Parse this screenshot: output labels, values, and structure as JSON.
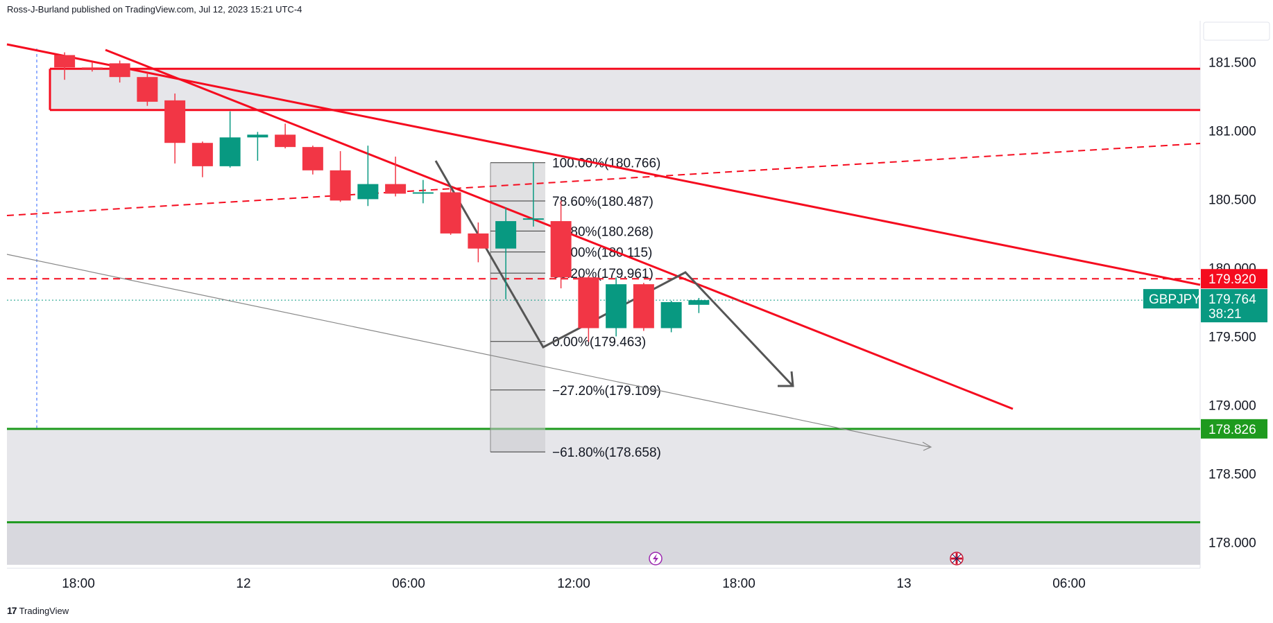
{
  "header": {
    "publisher": "Ross-J-Burland published on TradingView.com, Jul 12, 2023 15:21 UTC-4"
  },
  "footer": {
    "brand": "TradingView"
  },
  "colors": {
    "bull": "#089981",
    "bear": "#f23645",
    "resistance": "#f50c1f",
    "support": "#1e9a1e",
    "grey": "#555555",
    "zone": "#e6e6ea"
  },
  "chart_data": {
    "type": "candlestick",
    "symbol": "GBPJPY",
    "x_ticks": [
      "18:00",
      "12",
      "06:00",
      "12:00",
      "18:00",
      "13",
      "06:00"
    ],
    "y_ticks": [
      "181.500",
      "181.000",
      "180.500",
      "180.000",
      "179.500",
      "179.000",
      "178.500",
      "178.000"
    ],
    "ylim": [
      177.81,
      181.8
    ],
    "candles": [
      {
        "t": -0.5,
        "o": 181.55,
        "h": 181.57,
        "l": 181.37,
        "c": 181.46
      },
      {
        "t": 0.5,
        "o": 181.46,
        "h": 181.5,
        "l": 181.43,
        "c": 181.45
      },
      {
        "t": 1.5,
        "o": 181.49,
        "h": 181.51,
        "l": 181.35,
        "c": 181.39
      },
      {
        "t": 2.5,
        "o": 181.39,
        "h": 181.42,
        "l": 181.18,
        "c": 181.21
      },
      {
        "t": 3.5,
        "o": 181.22,
        "h": 181.27,
        "l": 180.76,
        "c": 180.91
      },
      {
        "t": 4.5,
        "o": 180.91,
        "h": 180.92,
        "l": 180.66,
        "c": 180.74
      },
      {
        "t": 5.5,
        "o": 180.74,
        "h": 181.14,
        "l": 180.73,
        "c": 180.95
      },
      {
        "t": 6.5,
        "o": 180.95,
        "h": 180.99,
        "l": 180.78,
        "c": 180.97
      },
      {
        "t": 7.5,
        "o": 180.97,
        "h": 181.05,
        "l": 180.87,
        "c": 180.88
      },
      {
        "t": 8.5,
        "o": 180.88,
        "h": 180.89,
        "l": 180.68,
        "c": 180.71
      },
      {
        "t": 9.5,
        "o": 180.71,
        "h": 180.85,
        "l": 180.48,
        "c": 180.49
      },
      {
        "t": 10.5,
        "o": 180.5,
        "h": 180.89,
        "l": 180.45,
        "c": 180.61
      },
      {
        "t": 11.5,
        "o": 180.61,
        "h": 180.81,
        "l": 180.52,
        "c": 180.54
      },
      {
        "t": 12.5,
        "o": 180.54,
        "h": 180.64,
        "l": 180.47,
        "c": 180.55
      },
      {
        "t": 13.5,
        "o": 180.55,
        "h": 180.58,
        "l": 180.24,
        "c": 180.25
      },
      {
        "t": 14.5,
        "o": 180.25,
        "h": 180.33,
        "l": 180.04,
        "c": 180.14
      },
      {
        "t": 15.5,
        "o": 180.14,
        "h": 180.44,
        "l": 179.77,
        "c": 180.34
      },
      {
        "t": 16.5,
        "o": 180.35,
        "h": 180.77,
        "l": 180.3,
        "c": 180.36
      },
      {
        "t": 17.5,
        "o": 180.34,
        "h": 180.49,
        "l": 179.85,
        "c": 179.93
      },
      {
        "t": 18.5,
        "o": 179.93,
        "h": 179.94,
        "l": 179.46,
        "c": 179.56
      },
      {
        "t": 19.5,
        "o": 179.56,
        "h": 179.93,
        "l": 179.5,
        "c": 179.88
      },
      {
        "t": 20.5,
        "o": 179.88,
        "h": 179.89,
        "l": 179.54,
        "c": 179.56
      },
      {
        "t": 21.5,
        "o": 179.56,
        "h": 179.76,
        "l": 179.53,
        "c": 179.75
      },
      {
        "t": 22.5,
        "o": 179.73,
        "h": 179.78,
        "l": 179.67,
        "c": 179.764
      }
    ],
    "fibonacci": {
      "levels": [
        {
          "label": "100.00%(180.766)",
          "price": 180.766
        },
        {
          "label": "78.60%(180.487)",
          "price": 180.487
        },
        {
          "label": "61.80%(180.268)",
          "price": 180.268
        },
        {
          "label": "50.00%(180.115)",
          "price": 180.115
        },
        {
          "label": "38.20%(179.961)",
          "price": 179.961
        },
        {
          "label": "0.00%(179.463)",
          "price": 179.463
        },
        {
          "label": "−27.20%(179.109)",
          "price": 179.109
        },
        {
          "label": "−61.80%(178.658)",
          "price": 178.658
        }
      ]
    },
    "zones": [
      {
        "name": "resistance-zone",
        "top": 181.45,
        "bottom": 181.15
      },
      {
        "name": "support-zone",
        "top": 178.826,
        "bottom": 178.145
      }
    ],
    "price_tags": [
      {
        "name": "resistance-level-tag",
        "value": "179.920",
        "price": 179.92
      },
      {
        "name": "last-price-tag",
        "value": "179.764",
        "countdown": "38:21",
        "price": 179.764
      },
      {
        "name": "support-level-tag",
        "value": "178.826",
        "price": 178.826
      }
    ],
    "events": [
      {
        "name": "event-lightning-icon",
        "t": 20.8
      },
      {
        "name": "event-uk-flag-icon",
        "t": 31.6
      }
    ]
  }
}
